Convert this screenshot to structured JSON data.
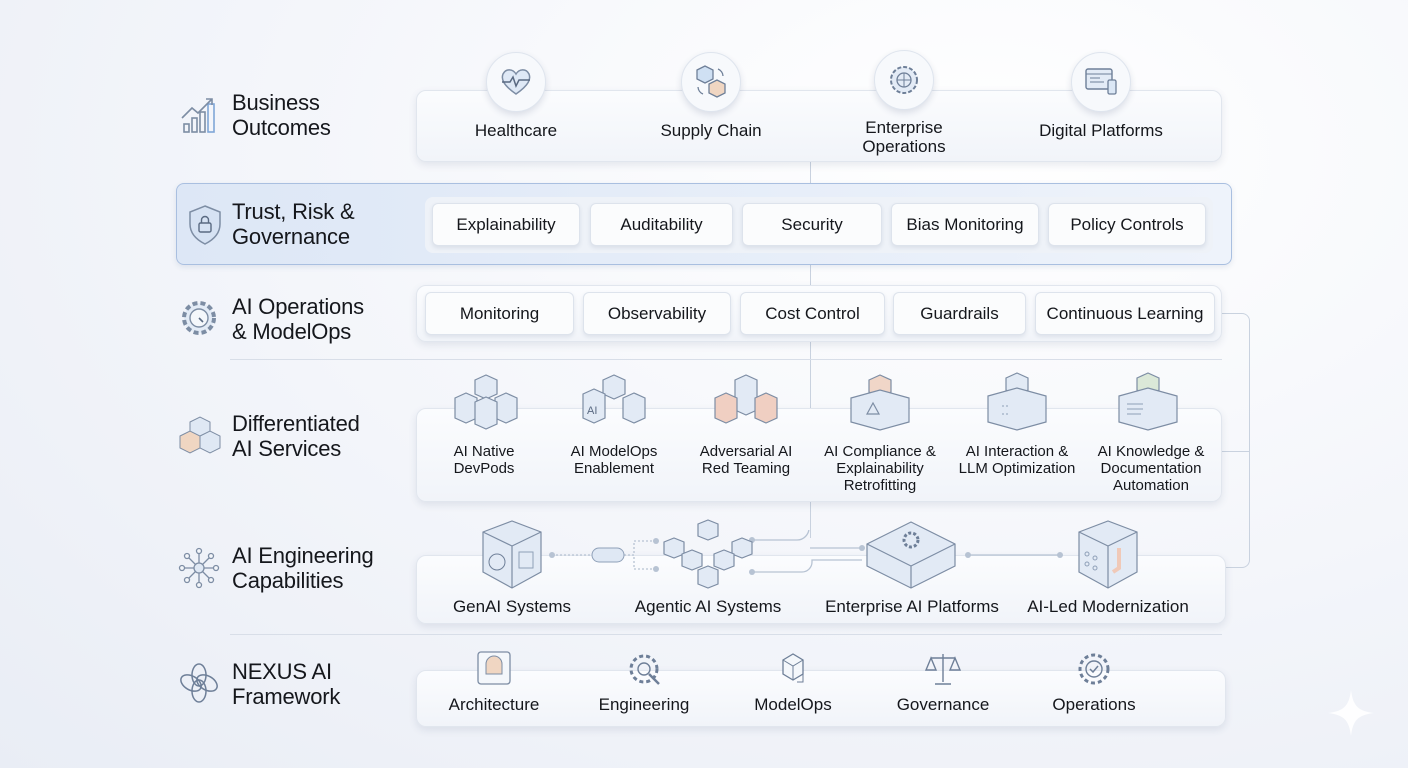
{
  "layers": {
    "business": {
      "title_1": "Business",
      "title_2": "Outcomes",
      "items": [
        {
          "label": "Healthcare",
          "icon": "heart-pulse-icon"
        },
        {
          "label": "Supply Chain",
          "icon": "boxes-exchange-icon"
        },
        {
          "label_1": "Enterprise",
          "label_2": "Operations",
          "icon": "gear-globe-icon"
        },
        {
          "label": "Digital Platforms",
          "icon": "browser-devices-icon"
        }
      ]
    },
    "trust": {
      "title_1": "Trust, Risk &",
      "title_2": "Governance",
      "items": [
        "Explainability",
        "Auditability",
        "Security",
        "Bias Monitoring",
        "Policy Controls"
      ]
    },
    "ops": {
      "title_1": "AI Operations",
      "title_2": "& ModelOps",
      "items": [
        "Monitoring",
        "Observability",
        "Cost Control",
        "Guardrails",
        "Continuous Learning"
      ]
    },
    "services": {
      "title_1": "Differentiated",
      "title_2": "AI Services",
      "items": [
        {
          "l1": "AI Native",
          "l2": "DevPods"
        },
        {
          "l1": "AI ModelOps",
          "l2": "Enablement",
          "icon_text": "AI"
        },
        {
          "l1": "Adversarial AI",
          "l2": "Red Teaming"
        },
        {
          "l1": "AI Compliance &",
          "l2": "Explainability",
          "l3": "Retrofitting"
        },
        {
          "l1": "AI Interaction &",
          "l2": "LLM Optimization"
        },
        {
          "l1": "AI Knowledge &",
          "l2": "Documentation",
          "l3": "Automation"
        }
      ]
    },
    "engineering": {
      "title_1": "AI Engineering",
      "title_2": "Capabilities",
      "items": [
        "GenAI Systems",
        "Agentic AI Systems",
        "Enterprise AI Platforms",
        "AI-Led Modernization"
      ]
    },
    "nexus": {
      "title_1": "NEXUS AI",
      "title_2": "Framework",
      "items": [
        "Architecture",
        "Engineering",
        "ModelOps",
        "Governance",
        "Operations"
      ]
    }
  },
  "colors": {
    "accent": "#a9bfe0",
    "trust_band": "#e4ecf8",
    "text": "#15171c",
    "peach": "#f0c9b8"
  }
}
